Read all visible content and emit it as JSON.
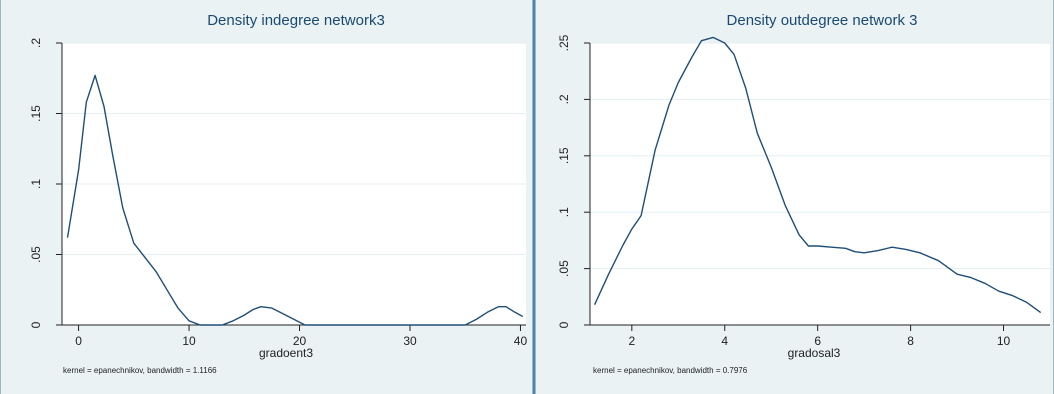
{
  "chart_data": [
    {
      "type": "line",
      "title": "Density indegree network3",
      "xlabel": "gradoent3",
      "ylabel": "",
      "note": "kernel = epanechnikov, bandwidth = 1.1166",
      "xlim": [
        -1.5,
        40.5
      ],
      "ylim": [
        0,
        0.2
      ],
      "x_ticks": [
        0,
        10,
        20,
        30,
        40
      ],
      "x_tick_labels": [
        "0",
        "10",
        "20",
        "30",
        "40"
      ],
      "y_ticks": [
        0,
        0.05,
        0.1,
        0.15,
        0.2
      ],
      "y_tick_labels": [
        "0",
        ".05",
        ".1",
        ".15",
        ".2"
      ],
      "grid": true,
      "series": [
        {
          "x": [
            -1,
            0,
            0.7,
            1.5,
            2.3,
            3.1,
            4,
            5,
            6,
            7,
            8,
            9,
            10,
            11,
            12,
            13,
            14,
            15,
            15.8,
            16.5,
            17.5,
            18.5,
            19.5,
            20.5,
            22,
            25,
            28,
            31,
            34,
            35,
            36,
            37,
            38,
            38.7,
            39.5,
            40.2
          ],
          "y": [
            0.062,
            0.11,
            0.158,
            0.177,
            0.155,
            0.12,
            0.083,
            0.058,
            0.048,
            0.038,
            0.025,
            0.012,
            0.003,
            0,
            0,
            0,
            0.003,
            0.007,
            0.011,
            0.013,
            0.012,
            0.008,
            0.004,
            0,
            0,
            0,
            0,
            0,
            0,
            0,
            0.004,
            0.009,
            0.013,
            0.013,
            0.009,
            0.006
          ]
        }
      ]
    },
    {
      "type": "line",
      "title": "Density outdegree network 3",
      "xlabel": "gradosal3",
      "ylabel": "",
      "note": "kernel = epanechnikov, bandwidth = 0.7976",
      "xlim": [
        1.1,
        11
      ],
      "ylim": [
        0,
        0.25
      ],
      "x_ticks": [
        2,
        4,
        6,
        8,
        10
      ],
      "x_tick_labels": [
        "2",
        "4",
        "6",
        "8",
        "10"
      ],
      "y_ticks": [
        0,
        0.05,
        0.1,
        0.15,
        0.2,
        0.25
      ],
      "y_tick_labels": [
        "0",
        ".05",
        ".1",
        ".15",
        ".2",
        ".25"
      ],
      "grid": true,
      "series": [
        {
          "x": [
            1.2,
            1.5,
            1.8,
            2.0,
            2.2,
            2.5,
            2.8,
            3.0,
            3.3,
            3.5,
            3.75,
            4.0,
            4.2,
            4.45,
            4.7,
            5.0,
            5.3,
            5.6,
            5.8,
            6.0,
            6.3,
            6.6,
            6.8,
            7.0,
            7.3,
            7.6,
            7.9,
            8.2,
            8.6,
            9.0,
            9.3,
            9.6,
            9.9,
            10.2,
            10.5,
            10.8
          ],
          "y": [
            0.018,
            0.045,
            0.07,
            0.085,
            0.097,
            0.155,
            0.195,
            0.215,
            0.238,
            0.252,
            0.255,
            0.25,
            0.24,
            0.21,
            0.17,
            0.14,
            0.106,
            0.08,
            0.07,
            0.07,
            0.069,
            0.068,
            0.065,
            0.064,
            0.066,
            0.069,
            0.067,
            0.064,
            0.057,
            0.045,
            0.042,
            0.037,
            0.03,
            0.026,
            0.02,
            0.011
          ]
        }
      ]
    }
  ]
}
